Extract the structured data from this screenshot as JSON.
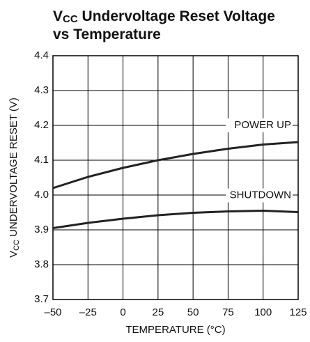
{
  "chart_data": {
    "type": "line",
    "title": [
      [
        {
          "text": "V"
        },
        {
          "text": "CC",
          "sub": true
        },
        {
          "text": " Undervoltage Reset Voltage"
        }
      ],
      [
        {
          "text": "vs Temperature"
        }
      ]
    ],
    "ylabel": [
      {
        "text": "V"
      },
      {
        "text": "CC",
        "sub": true
      },
      {
        "text": " UNDERVOLTAGE RESET (V)"
      }
    ],
    "xlabel": "TEMPERATURE (°C)",
    "x": [
      -50,
      -25,
      0,
      25,
      50,
      75,
      100,
      125
    ],
    "series": [
      {
        "name": "POWER UP",
        "color": "#222222",
        "values": [
          4.02,
          4.052,
          4.078,
          4.1,
          4.118,
          4.133,
          4.145,
          4.152
        ]
      },
      {
        "name": "SHUTDOWN",
        "color": "#222222",
        "values": [
          3.905,
          3.92,
          3.932,
          3.942,
          3.949,
          3.953,
          3.955,
          3.951
        ]
      }
    ],
    "xlim": [
      -50,
      125
    ],
    "xticks": [
      {
        "value": -50,
        "label": "–50"
      },
      {
        "value": -25,
        "label": "–25"
      },
      0,
      25,
      50,
      75,
      100,
      125
    ],
    "ylim": [
      3.7,
      4.4
    ],
    "yticks": [
      3.7,
      3.8,
      3.9,
      {
        "value": 4,
        "label": "4.0"
      },
      4.1,
      4.2,
      4.3,
      4.4
    ],
    "grid": true
  }
}
